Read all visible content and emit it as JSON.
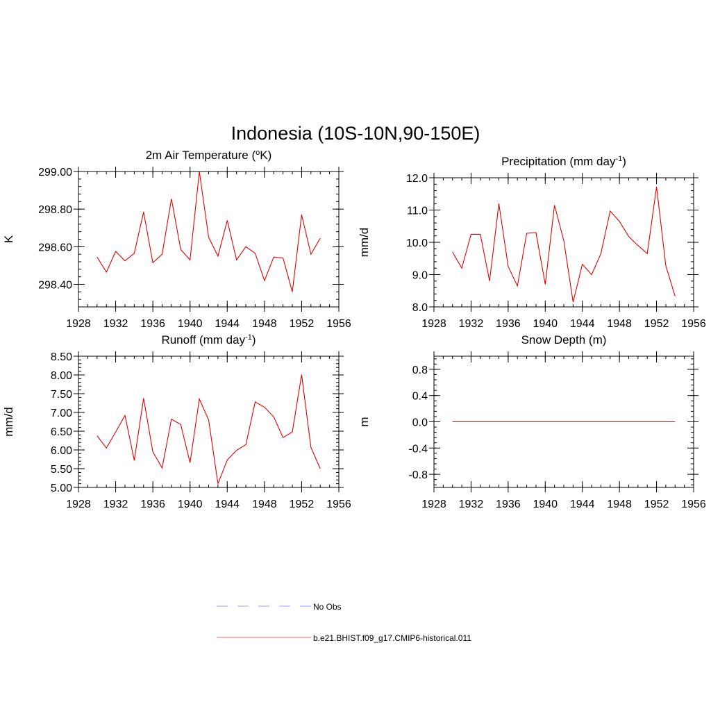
{
  "figure": {
    "title": "Indonesia (10S-10N,90-150E)"
  },
  "legend": [
    {
      "label": "No Obs",
      "color": "#9999ff",
      "style": "dashed"
    },
    {
      "label": "b.e21.BHIST.f09_g17.CMIP6-historical.011",
      "color": "#ff6666",
      "style": "solid"
    }
  ],
  "chart_data": [
    {
      "type": "line",
      "title": "2m Air Temperature (",
      "title_sup": "o",
      "title_tail": "K)",
      "ylabel": "K",
      "xlim": [
        1928,
        1956
      ],
      "ylim": [
        298.28,
        299.0
      ],
      "xticks": [
        1928,
        1932,
        1936,
        1940,
        1944,
        1948,
        1952,
        1956
      ],
      "yticks": [
        298.4,
        298.6,
        298.8,
        299.0
      ],
      "ytick_labels": [
        "298.40",
        "298.60",
        "298.80",
        "299.00"
      ],
      "grid": false,
      "series": [
        {
          "color": "#e00000",
          "x": [
            1930,
            1931,
            1932,
            1933,
            1934,
            1935,
            1936,
            1937,
            1938,
            1939,
            1940,
            1941,
            1942,
            1943,
            1944,
            1945,
            1946,
            1947,
            1948,
            1949,
            1950,
            1951,
            1952,
            1953,
            1954
          ],
          "values": [
            298.545,
            298.465,
            298.575,
            298.525,
            298.565,
            298.785,
            298.515,
            298.56,
            298.855,
            298.585,
            298.53,
            299.0,
            298.65,
            298.55,
            298.74,
            298.53,
            298.6,
            298.565,
            298.42,
            298.545,
            298.54,
            298.36,
            298.77,
            298.56,
            298.645
          ]
        }
      ]
    },
    {
      "type": "line",
      "title": "Precipitation (mm day",
      "title_sup": "-1",
      "title_tail": ")",
      "ylabel": "mm/d",
      "xlim": [
        1928,
        1956
      ],
      "ylim": [
        8.0,
        12.0
      ],
      "xticks": [
        1928,
        1932,
        1936,
        1940,
        1944,
        1948,
        1952,
        1956
      ],
      "yticks": [
        8.0,
        9.0,
        10.0,
        11.0,
        12.0
      ],
      "ytick_labels": [
        "8.0",
        "9.0",
        "10.0",
        "11.0",
        "12.0"
      ],
      "grid": false,
      "series": [
        {
          "color": "#e00000",
          "x": [
            1930,
            1931,
            1932,
            1933,
            1934,
            1935,
            1936,
            1937,
            1938,
            1939,
            1940,
            1941,
            1942,
            1943,
            1944,
            1945,
            1946,
            1947,
            1948,
            1949,
            1950,
            1951,
            1952,
            1953,
            1954
          ],
          "values": [
            9.7,
            9.2,
            10.25,
            10.25,
            8.8,
            11.2,
            9.25,
            8.65,
            10.28,
            10.3,
            8.7,
            11.15,
            10.05,
            8.15,
            9.32,
            9.0,
            9.65,
            10.97,
            10.65,
            10.18,
            9.9,
            9.65,
            11.72,
            9.28,
            8.33
          ]
        }
      ]
    },
    {
      "type": "line",
      "title": "Runoff (mm day",
      "title_sup": "-1",
      "title_tail": ")",
      "ylabel": "mm/d",
      "xlim": [
        1928,
        1956
      ],
      "ylim": [
        5.0,
        8.5
      ],
      "xticks": [
        1928,
        1932,
        1936,
        1940,
        1944,
        1948,
        1952,
        1956
      ],
      "yticks": [
        5.0,
        5.5,
        6.0,
        6.5,
        7.0,
        7.5,
        8.0,
        8.5
      ],
      "ytick_labels": [
        "5.00",
        "5.50",
        "6.00",
        "6.50",
        "7.00",
        "7.50",
        "8.00",
        "8.50"
      ],
      "grid": false,
      "series": [
        {
          "color": "#e00000",
          "x": [
            1930,
            1931,
            1932,
            1933,
            1934,
            1935,
            1936,
            1937,
            1938,
            1939,
            1940,
            1941,
            1942,
            1943,
            1944,
            1945,
            1946,
            1947,
            1948,
            1949,
            1950,
            1951,
            1952,
            1953,
            1954
          ],
          "values": [
            6.38,
            6.05,
            6.48,
            6.92,
            5.72,
            7.38,
            5.95,
            5.52,
            6.82,
            6.68,
            5.66,
            7.36,
            6.8,
            5.1,
            5.73,
            5.99,
            6.14,
            7.28,
            7.14,
            6.88,
            6.33,
            6.48,
            8.01,
            6.07,
            5.5
          ]
        }
      ]
    },
    {
      "type": "line",
      "title": "Snow Depth (m)",
      "title_sup": "",
      "title_tail": "",
      "ylabel": "m",
      "xlim": [
        1928,
        1956
      ],
      "ylim": [
        -1.0,
        1.0
      ],
      "xticks": [
        1928,
        1932,
        1936,
        1940,
        1944,
        1948,
        1952,
        1956
      ],
      "yticks": [
        -0.8,
        -0.4,
        0.0,
        0.4,
        0.8
      ],
      "ytick_labels": [
        "-0.8",
        "-0.4",
        "0.0",
        "0.4",
        "0.8"
      ],
      "grid": false,
      "series": [
        {
          "color": "#e00000",
          "x": [
            1930,
            1931,
            1932,
            1933,
            1934,
            1935,
            1936,
            1937,
            1938,
            1939,
            1940,
            1941,
            1942,
            1943,
            1944,
            1945,
            1946,
            1947,
            1948,
            1949,
            1950,
            1951,
            1952,
            1953,
            1954
          ],
          "values": [
            0,
            0,
            0,
            0,
            0,
            0,
            0,
            0,
            0,
            0,
            0,
            0,
            0,
            0,
            0,
            0,
            0,
            0,
            0,
            0,
            0,
            0,
            0,
            0,
            0
          ]
        }
      ]
    }
  ]
}
